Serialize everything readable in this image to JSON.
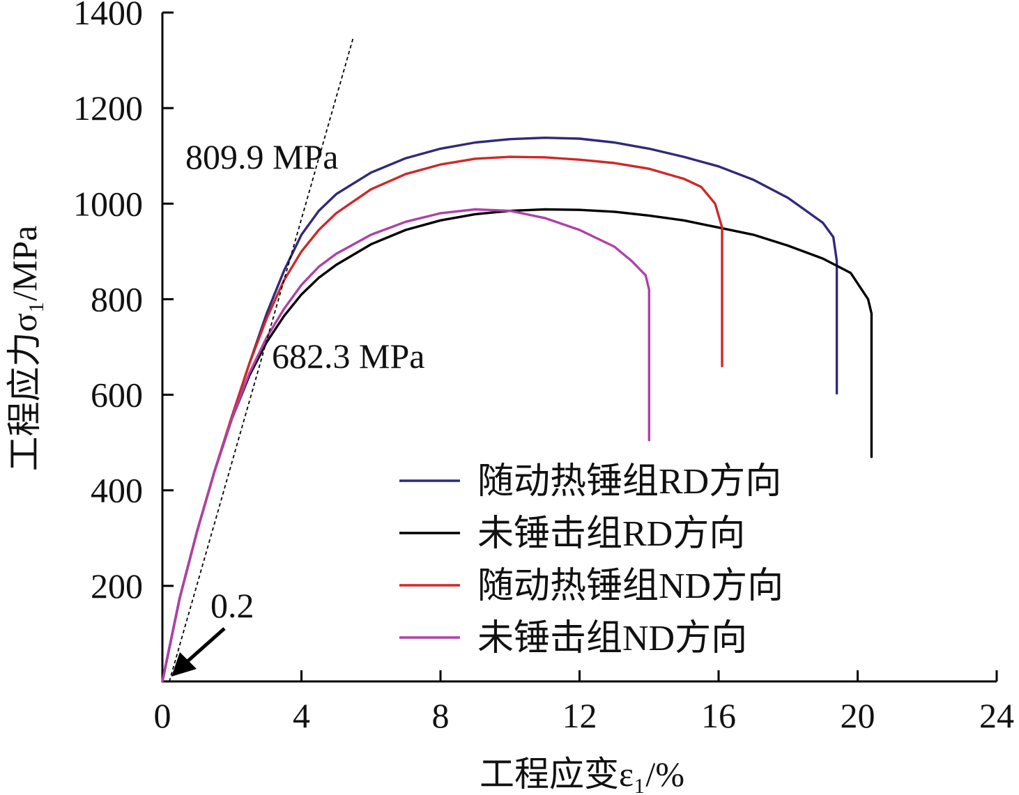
{
  "chart_data": {
    "type": "line",
    "title": "",
    "xlabel": "工程应变ε₁/%",
    "ylabel": "工程应力σ₁/MPa",
    "xlim": [
      0,
      24
    ],
    "ylim": [
      0,
      1400
    ],
    "xticks": [
      0,
      4,
      8,
      12,
      16,
      20,
      24
    ],
    "yticks": [
      200,
      400,
      600,
      800,
      1000,
      1200,
      1400
    ],
    "y_origin_label": "0",
    "grid": false,
    "legend_position": "bottom-right",
    "series": [
      {
        "name": "随动热锤组RD方向",
        "color": "#2f2a7a",
        "x": [
          0,
          0.5,
          1,
          1.5,
          2,
          2.5,
          3,
          3.5,
          4,
          4.5,
          5,
          6,
          7,
          8,
          9,
          10,
          11,
          12,
          13,
          14,
          15,
          16,
          17,
          18,
          19,
          19.3,
          19.4,
          19.4
        ],
        "y": [
          0,
          175,
          315,
          440,
          555,
          665,
          770,
          860,
          935,
          985,
          1020,
          1065,
          1095,
          1115,
          1128,
          1135,
          1138,
          1136,
          1128,
          1115,
          1098,
          1078,
          1050,
          1012,
          960,
          930,
          880,
          603
        ]
      },
      {
        "name": "未锤击组RD方向",
        "color": "#000000",
        "x": [
          0,
          0.5,
          1,
          1.5,
          2,
          2.5,
          3,
          3.5,
          4,
          4.5,
          5,
          6,
          7,
          8,
          9,
          10,
          11,
          12,
          13,
          14,
          15,
          16,
          17,
          18,
          19,
          19.8,
          20.3,
          20.4,
          20.4
        ],
        "y": [
          0,
          175,
          315,
          440,
          550,
          640,
          710,
          765,
          810,
          845,
          872,
          915,
          945,
          965,
          978,
          985,
          988,
          987,
          983,
          975,
          965,
          950,
          935,
          912,
          885,
          855,
          800,
          770,
          470
        ]
      },
      {
        "name": "随动热锤组ND方向",
        "color": "#d02828",
        "x": [
          0,
          0.5,
          1,
          1.5,
          2,
          2.5,
          3,
          3.5,
          4,
          4.5,
          5,
          6,
          7,
          8,
          9,
          10,
          11,
          12,
          13,
          14,
          15,
          15.5,
          15.9,
          16.1,
          16.1,
          16.1
        ],
        "y": [
          0,
          175,
          315,
          440,
          555,
          665,
          760,
          840,
          900,
          945,
          980,
          1030,
          1062,
          1082,
          1094,
          1098,
          1097,
          1092,
          1085,
          1073,
          1052,
          1035,
          1000,
          950,
          900,
          660
        ]
      },
      {
        "name": "未锤击组ND方向",
        "color": "#b040a8",
        "x": [
          0,
          0.5,
          1,
          1.5,
          2,
          2.5,
          3,
          3.5,
          4,
          4.5,
          5,
          6,
          7,
          8,
          9,
          10,
          11,
          12,
          13,
          13.5,
          13.9,
          14,
          14,
          14
        ],
        "y": [
          0,
          175,
          315,
          440,
          550,
          645,
          720,
          780,
          830,
          868,
          895,
          935,
          962,
          980,
          988,
          985,
          970,
          945,
          910,
          880,
          850,
          820,
          790,
          505
        ]
      }
    ],
    "reference_line": {
      "label": "0.2",
      "x": [
        0.2,
        5.5
      ],
      "y": [
        0,
        1350
      ]
    },
    "annotations": [
      {
        "text": "809.9 MPa",
        "x": 3.5,
        "y": 809.9
      },
      {
        "text": "682.3 MPa",
        "x": 3.0,
        "y": 682.3
      },
      {
        "text": "0.2",
        "x": 0.2,
        "y": 0
      }
    ]
  }
}
